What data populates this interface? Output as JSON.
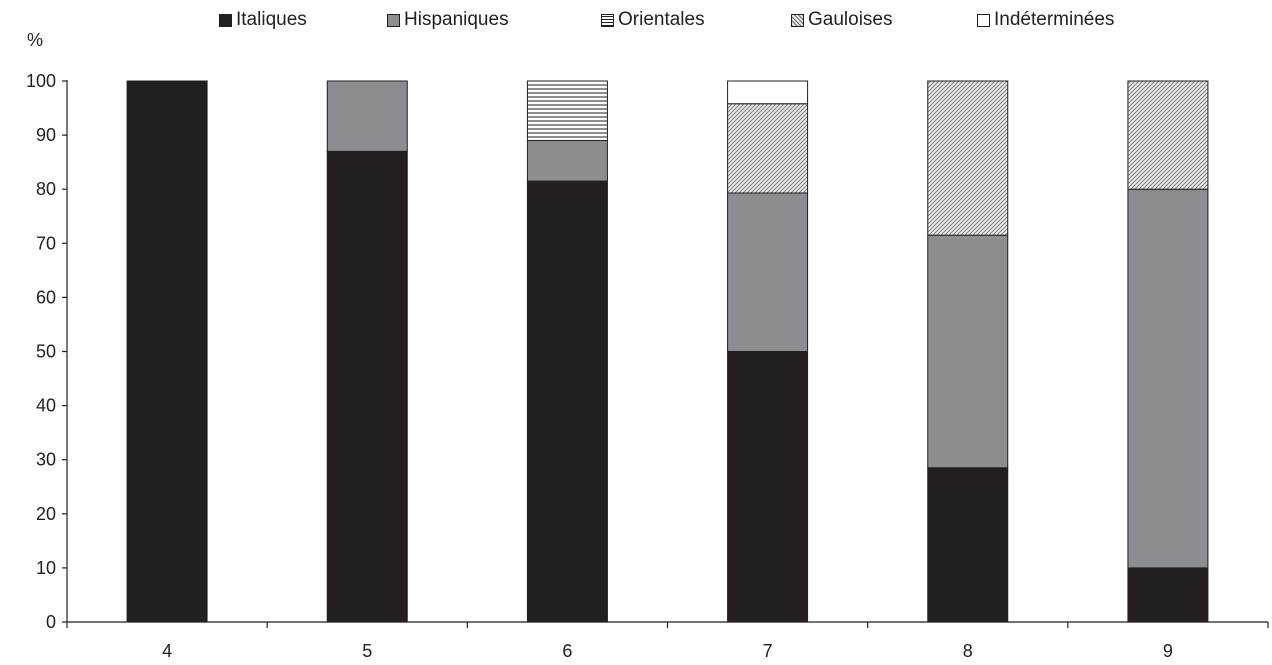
{
  "chart_data": {
    "type": "bar",
    "stacked": true,
    "categories": [
      "4",
      "5",
      "6",
      "7",
      "8",
      "9"
    ],
    "series": [
      {
        "name": "Italiques",
        "values": [
          100,
          87,
          81.5,
          50,
          28.5,
          10
        ],
        "fill": "solid-black"
      },
      {
        "name": "Hispaniques",
        "values": [
          0,
          13,
          7.5,
          29.3,
          43,
          70
        ],
        "fill": "solid-gray"
      },
      {
        "name": "Orientales",
        "values": [
          0,
          0,
          11,
          0,
          0,
          0
        ],
        "fill": "horizontal-lines"
      },
      {
        "name": "Gauloises",
        "values": [
          0,
          0,
          0,
          16.5,
          28.5,
          20
        ],
        "fill": "diagonal-hatch"
      },
      {
        "name": "Indéterminées",
        "values": [
          0,
          0,
          0,
          4.2,
          0,
          0
        ],
        "fill": "white"
      }
    ],
    "y_unit_label": "%",
    "ylim": [
      0,
      100
    ],
    "yticks": [
      0,
      10,
      20,
      30,
      40,
      50,
      60,
      70,
      80,
      90,
      100
    ],
    "grid": false,
    "legend_position": "top",
    "colors": {
      "Italiques": "#231f20",
      "Hispaniques": "#8c8d90",
      "border": "#231f20"
    }
  }
}
